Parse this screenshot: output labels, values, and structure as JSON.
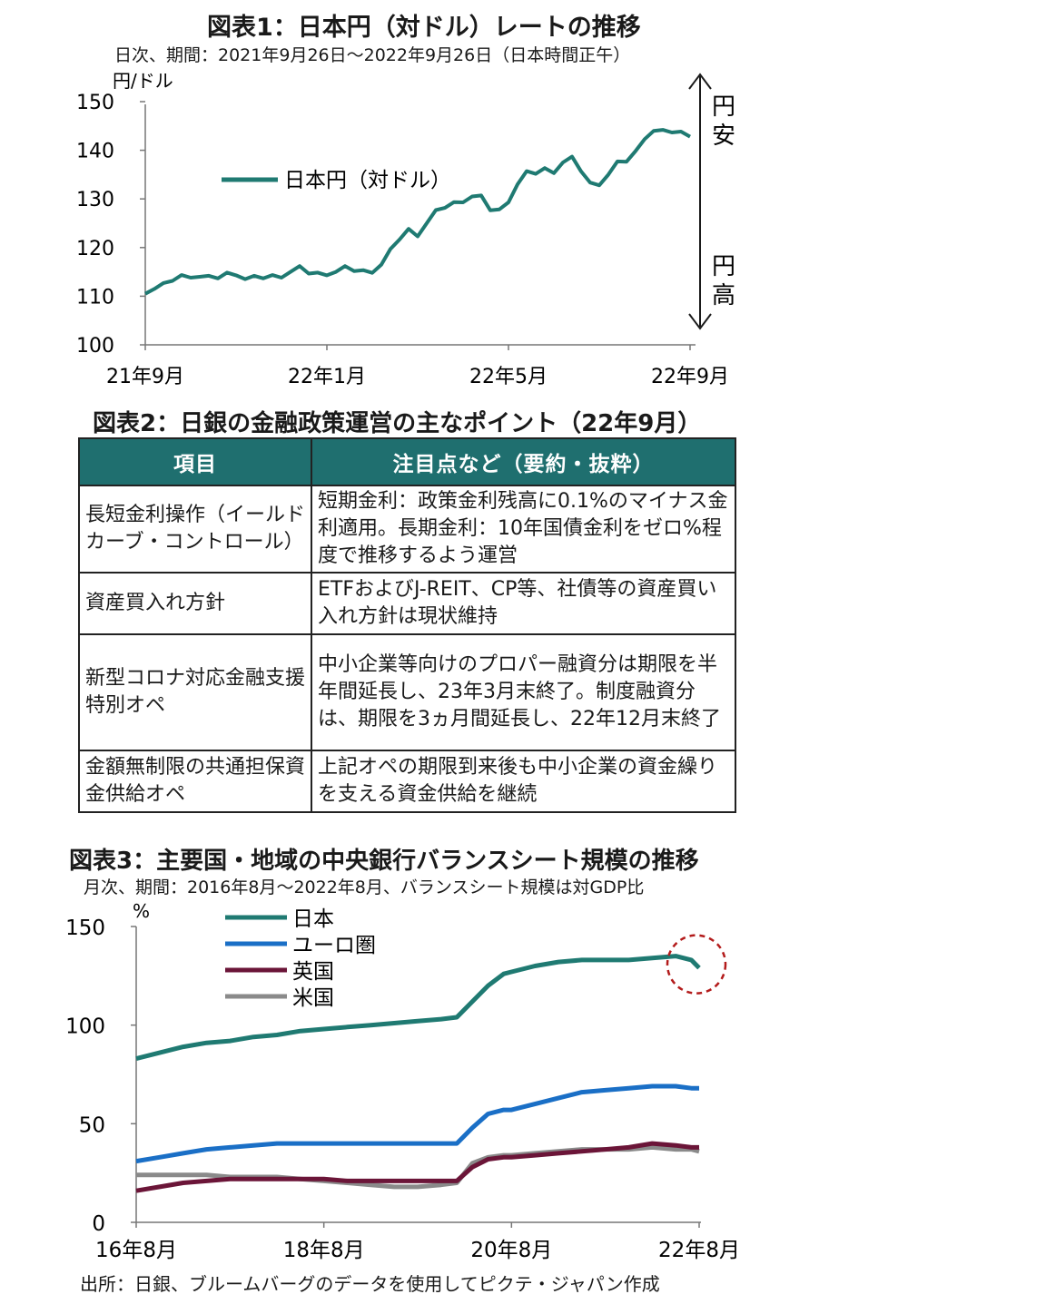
{
  "chart1": {
    "title": "図表1：日本円（対ドル）レートの推移",
    "subtitle": "日次、期間：2021年9月26日～2022年9月26日（日本時間正午）",
    "unit": "円/ドル",
    "annotation_top": "円\n安",
    "annotation_bottom": "円\n高",
    "annot_top_1": "円",
    "annot_top_2": "安",
    "annot_bot_1": "円",
    "annot_bot_2": "高"
  },
  "chart_data": [
    {
      "type": "line",
      "title": "図表1：日本円（対ドル）レートの推移",
      "subtitle": "日次、期間：2021年9月26日～2022年9月26日（日本時間正午）",
      "ylabel": "円/ドル",
      "ylim": [
        100,
        150
      ],
      "yticks": [
        100,
        110,
        120,
        130,
        140,
        150
      ],
      "xticks": [
        "21年9月",
        "22年1月",
        "22年5月",
        "22年9月"
      ],
      "xlim": [
        0,
        12
      ],
      "legend": "top-left",
      "grid": false,
      "series": [
        {
          "name": "日本円（対ドル）",
          "color": "#1f7a72",
          "x": [
            0,
            0.2,
            0.4,
            0.6,
            0.8,
            1.0,
            1.2,
            1.4,
            1.6,
            1.8,
            2.0,
            2.2,
            2.4,
            2.6,
            2.8,
            3.0,
            3.2,
            3.4,
            3.6,
            3.8,
            4.0,
            4.2,
            4.4,
            4.6,
            4.8,
            5.0,
            5.2,
            5.4,
            5.6,
            5.8,
            6.0,
            6.2,
            6.4,
            6.6,
            6.8,
            7.0,
            7.2,
            7.4,
            7.6,
            7.8,
            8.0,
            8.2,
            8.4,
            8.6,
            8.8,
            9.0,
            9.2,
            9.4,
            9.6,
            9.8,
            10.0,
            10.2,
            10.4,
            10.6,
            10.8,
            11.0,
            11.2,
            11.4,
            11.6,
            11.8,
            12.0
          ],
          "values": [
            110.5,
            111.5,
            112.0,
            113.5,
            114.0,
            114.5,
            114.0,
            113.5,
            114.0,
            114.5,
            115.0,
            113.5,
            113.5,
            114.0,
            114.0,
            114.5,
            115.0,
            115.5,
            115.0,
            114.5,
            115.0,
            115.0,
            115.5,
            115.5,
            115.0,
            115.5,
            116.5,
            119.0,
            122.0,
            123.5,
            123.0,
            125.0,
            127.0,
            128.5,
            129.0,
            130.0,
            130.5,
            130.0,
            128.0,
            127.5,
            130.0,
            133.0,
            135.0,
            135.5,
            136.0,
            136.0,
            137.5,
            138.0,
            136.0,
            133.0,
            133.5,
            135.0,
            137.0,
            138.0,
            139.5,
            143.0,
            144.0,
            143.5,
            144.0,
            143.5,
            143.5
          ]
        }
      ]
    },
    {
      "type": "table",
      "title": "図表2：日銀の金融政策運営の主なポイント（22年9月）",
      "columns": [
        "項目",
        "注目点など（要約・抜粋）"
      ],
      "rows": [
        [
          "長短金利操作（イールドカーブ・コントロール）",
          "短期金利：政策金利残高に0.1%のマイナス金利適用。長期金利：10年国債金利をゼロ%程度で推移するよう運営"
        ],
        [
          "資産買入れ方針",
          "ETFおよびJ-REIT、CP等、社債等の資産買い入れ方針は現状維持"
        ],
        [
          "新型コロナ対応金融支援特別オペ",
          "中小企業等向けのプロパー融資分は期限を半年間延長し、23年3月末終了。制度融資分は、期限を3ヵ月間延長し、22年12月末終了"
        ],
        [
          "金額無制限の共通担保資金供給オペ",
          "上記オペの期限到来後も中小企業の資金繰りを支える資金供給を継続"
        ]
      ]
    },
    {
      "type": "line",
      "title": "図表3：主要国・地域の中央銀行バランスシート規模の推移",
      "subtitle": "月次、期間：2016年8月～2022年8月、バランスシート規模は対GDP比",
      "ylabel": "%",
      "ylim": [
        0,
        150
      ],
      "yticks": [
        0,
        50,
        100,
        150
      ],
      "xticks": [
        "16年8月",
        "18年8月",
        "20年8月",
        "22年8月"
      ],
      "xlim": [
        0,
        72
      ],
      "legend": "top-left",
      "grid": false,
      "series": [
        {
          "name": "日本",
          "color": "#1f7a72",
          "x": [
            0,
            3,
            6,
            9,
            12,
            15,
            18,
            21,
            24,
            27,
            30,
            33,
            36,
            39,
            41,
            43,
            45,
            47,
            48,
            51,
            54,
            57,
            60,
            63,
            66,
            69,
            71,
            72
          ],
          "values": [
            83,
            86,
            89,
            91,
            92,
            94,
            95,
            97,
            98,
            99,
            100,
            101,
            102,
            103,
            104,
            112,
            120,
            126,
            127,
            130,
            132,
            133,
            133,
            133,
            134,
            135,
            133,
            129
          ]
        },
        {
          "name": "ユーロ圏",
          "color": "#1a6fc6",
          "x": [
            0,
            3,
            6,
            9,
            12,
            15,
            18,
            21,
            24,
            27,
            30,
            33,
            36,
            39,
            41,
            43,
            45,
            47,
            48,
            51,
            54,
            57,
            60,
            63,
            66,
            69,
            71,
            72
          ],
          "values": [
            31,
            33,
            35,
            37,
            38,
            39,
            40,
            40,
            40,
            40,
            40,
            40,
            40,
            40,
            40,
            48,
            55,
            57,
            57,
            60,
            63,
            66,
            67,
            68,
            69,
            69,
            68,
            68
          ]
        },
        {
          "name": "英国",
          "color": "#6b1538",
          "x": [
            0,
            3,
            6,
            9,
            12,
            15,
            18,
            21,
            24,
            27,
            30,
            33,
            36,
            39,
            41,
            43,
            45,
            47,
            48,
            51,
            54,
            57,
            60,
            63,
            66,
            69,
            71,
            72
          ],
          "values": [
            16,
            18,
            20,
            21,
            22,
            22,
            22,
            22,
            22,
            21,
            21,
            21,
            21,
            21,
            21,
            28,
            32,
            33,
            33,
            34,
            35,
            36,
            37,
            38,
            40,
            39,
            38,
            38
          ]
        },
        {
          "name": "米国",
          "color": "#8a8a8a",
          "x": [
            0,
            3,
            6,
            9,
            12,
            15,
            18,
            21,
            24,
            27,
            30,
            33,
            36,
            39,
            41,
            43,
            45,
            47,
            48,
            51,
            54,
            57,
            60,
            63,
            66,
            69,
            71,
            72
          ],
          "values": [
            24,
            24,
            24,
            24,
            23,
            23,
            23,
            22,
            21,
            20,
            19,
            18,
            18,
            19,
            20,
            30,
            33,
            34,
            34,
            35,
            36,
            37,
            37,
            37,
            38,
            37,
            37,
            36
          ]
        }
      ]
    }
  ],
  "chart3_extra": {
    "highlight": "circle around latest 日本 value",
    "source": "出所：日銀、ブルームバーグのデータを使用してピクテ・ジャパン作成"
  }
}
